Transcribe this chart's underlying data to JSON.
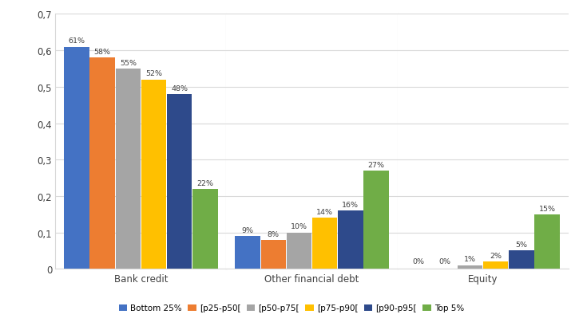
{
  "categories": [
    "Bank credit",
    "Other financial debt",
    "Equity"
  ],
  "series": [
    {
      "label": "Bottom 25%",
      "color": "#4472C4",
      "values": [
        0.61,
        0.09,
        0.0
      ]
    },
    {
      "label": "[p25-p50[",
      "color": "#ED7D31",
      "values": [
        0.58,
        0.08,
        0.0
      ]
    },
    {
      "label": "[p50-p75[",
      "color": "#A5A5A5",
      "values": [
        0.55,
        0.1,
        0.01
      ]
    },
    {
      "label": "[p75-p90[",
      "color": "#FFC000",
      "values": [
        0.52,
        0.14,
        0.02
      ]
    },
    {
      "label": "[p90-p95[",
      "color": "#2E4A8B",
      "values": [
        0.48,
        0.16,
        0.05
      ]
    },
    {
      "label": "Top 5%",
      "color": "#70AD47",
      "values": [
        0.22,
        0.27,
        0.15
      ]
    }
  ],
  "bar_labels": [
    [
      "61%",
      "58%",
      "55%",
      "52%",
      "48%",
      "22%"
    ],
    [
      "9%",
      "8%",
      "10%",
      "14%",
      "16%",
      "27%"
    ],
    [
      "0%",
      "0%",
      "1%",
      "2%",
      "5%",
      "15%"
    ]
  ],
  "ylim": [
    0,
    0.7
  ],
  "yticks": [
    0.0,
    0.1,
    0.2,
    0.3,
    0.4,
    0.5,
    0.6,
    0.7
  ],
  "ytick_labels": [
    "0",
    "0,1",
    "0,2",
    "0,3",
    "0,4",
    "0,5",
    "0,6",
    "0,7"
  ],
  "background_color": "#FFFFFF",
  "grid_color": "#D9D9D9",
  "bar_width": 0.115,
  "bar_gap": 0.003
}
